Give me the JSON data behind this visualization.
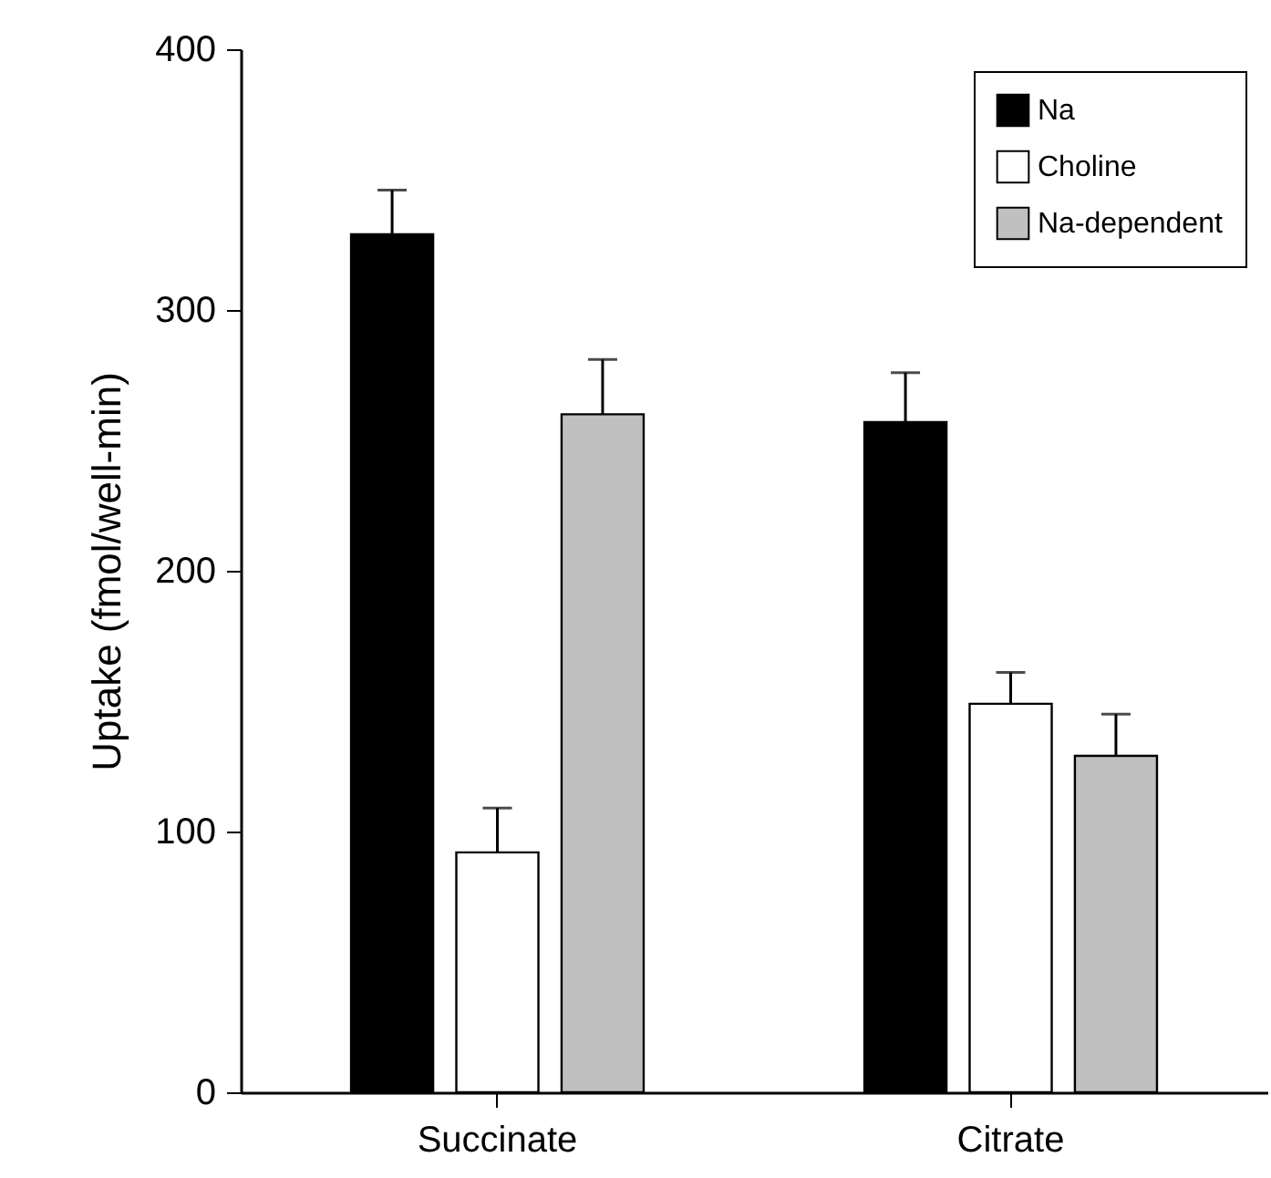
{
  "chart_data": {
    "type": "bar",
    "ylabel": "Uptake (fmol/well-min)",
    "categories": [
      "Succinate",
      "Citrate"
    ],
    "series": [
      {
        "name": "Na",
        "color": "#000000",
        "values": [
          329,
          257
        ],
        "errors": [
          [
            329,
            346
          ],
          [
            257,
            276
          ]
        ]
      },
      {
        "name": "Choline",
        "color": "#ffffff",
        "values": [
          92,
          149
        ],
        "errors": [
          [
            92,
            109
          ],
          [
            149,
            161
          ]
        ]
      },
      {
        "name": "Na-dependent",
        "color": "#c0c0c0",
        "values": [
          260,
          129
        ],
        "errors": [
          [
            260,
            281
          ],
          [
            129,
            145
          ]
        ]
      }
    ],
    "ylim": [
      0,
      400
    ],
    "yticks": [
      0,
      100,
      200,
      300,
      400
    ],
    "grid": false,
    "legend": "top right"
  }
}
